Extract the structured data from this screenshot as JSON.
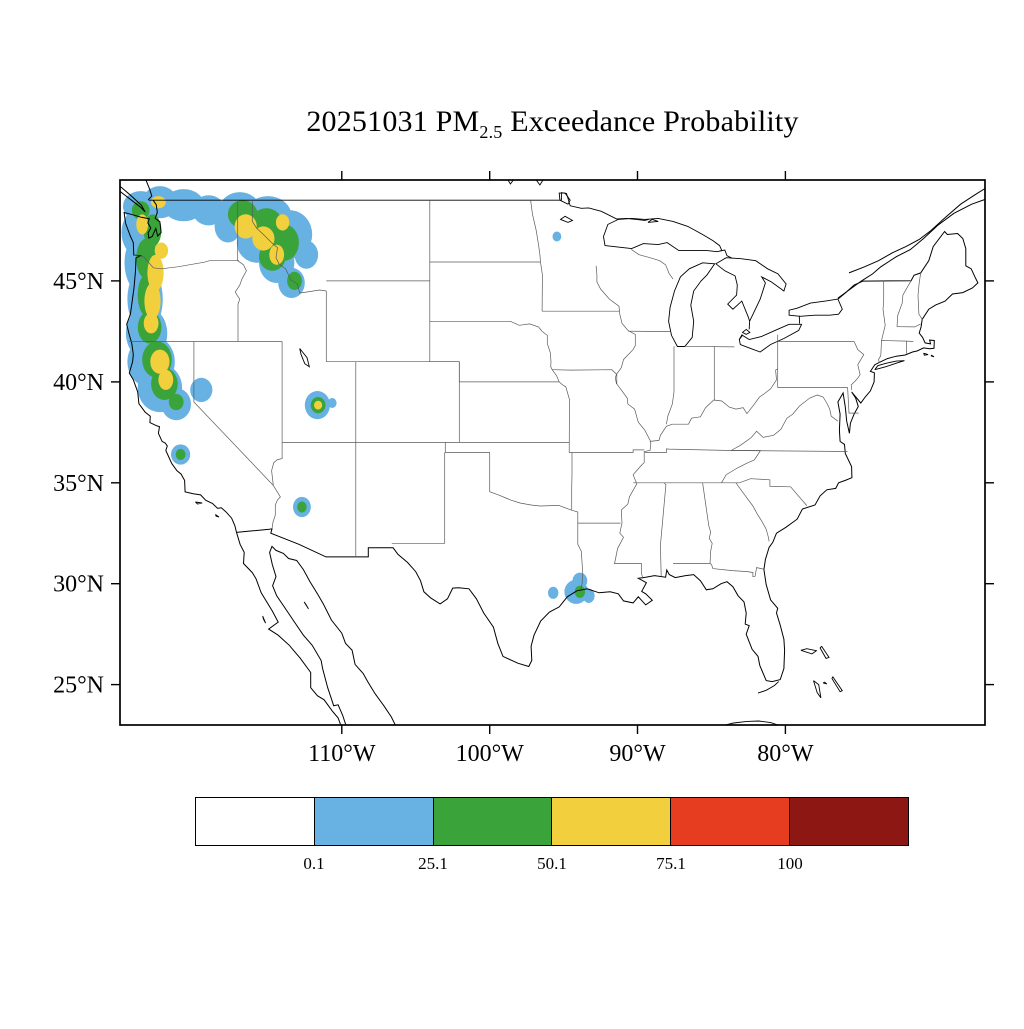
{
  "title": {
    "prefix": "20251031 PM",
    "subscript": "2.5",
    "suffix": " Exceedance Probability"
  },
  "chart_data": {
    "type": "heatmap",
    "subtype": "filled-contour probability map over continental United States",
    "title": "20251031 PM2.5 Exceedance Probability",
    "date": "20251031",
    "quantity": "PM2.5 exceedance probability (%)",
    "map_extent": {
      "lon_min": -125.0,
      "lon_max": -66.5,
      "lat_min": 23.0,
      "lat_max": 50.0
    },
    "grid": "off",
    "x_axis": {
      "ticks": [
        {
          "value": -110,
          "label": "110°W"
        },
        {
          "value": -100,
          "label": "100°W"
        },
        {
          "value": -90,
          "label": "90°W"
        },
        {
          "value": -80,
          "label": "80°W"
        }
      ]
    },
    "y_axis": {
      "ticks": [
        {
          "value": 45,
          "label": "45°N"
        },
        {
          "value": 40,
          "label": "40°N"
        },
        {
          "value": 35,
          "label": "35°N"
        },
        {
          "value": 30,
          "label": "30°N"
        },
        {
          "value": 25,
          "label": "25°N"
        }
      ]
    },
    "colorbar": {
      "orientation": "horizontal",
      "bin_edges": [
        0,
        0.1,
        25.1,
        50.1,
        75.1,
        100
      ],
      "tick_labels": [
        "0.1",
        "25.1",
        "50.1",
        "75.1",
        "100"
      ],
      "colors": [
        "#ffffff",
        "#67b1e3",
        "#3aa33a",
        "#f2cf3d",
        "#e63d20",
        "#8d1713"
      ]
    },
    "probability_regions": {
      "columns": [
        "lon",
        "lat",
        "rx_deg",
        "ry_deg",
        "bin"
      ],
      "bin_meaning": {
        "1": "0.1-25.1 %",
        "2": "25.1-50.1 %",
        "3": "50.1-75.1 %"
      },
      "points": [
        [
          -123.6,
          48.7,
          1.2,
          0.75,
          1
        ],
        [
          -122.3,
          48.9,
          1.2,
          0.8,
          1
        ],
        [
          -120.7,
          48.75,
          1.4,
          0.8,
          1
        ],
        [
          -119.0,
          48.5,
          1.1,
          0.75,
          1
        ],
        [
          -123.9,
          47.4,
          1.0,
          1.1,
          1
        ],
        [
          -123.5,
          45.9,
          1.2,
          1.5,
          1
        ],
        [
          -123.3,
          44.1,
          1.2,
          1.6,
          1
        ],
        [
          -123.2,
          42.4,
          1.4,
          1.3,
          1
        ],
        [
          -122.9,
          41.0,
          1.6,
          1.3,
          1
        ],
        [
          -122.3,
          39.7,
          1.5,
          1.2,
          1
        ],
        [
          -121.2,
          38.9,
          1.0,
          0.8,
          1
        ],
        [
          -119.5,
          39.6,
          0.75,
          0.6,
          1
        ],
        [
          -116.9,
          48.5,
          1.4,
          0.9,
          1
        ],
        [
          -115.0,
          48.2,
          1.6,
          1.0,
          1
        ],
        [
          -113.5,
          47.3,
          1.5,
          1.2,
          1
        ],
        [
          -115.7,
          46.9,
          1.4,
          1.0,
          1
        ],
        [
          -114.4,
          45.9,
          1.2,
          1.0,
          1
        ],
        [
          -113.4,
          44.9,
          0.9,
          0.75,
          1
        ],
        [
          -112.4,
          46.3,
          0.8,
          0.7,
          1
        ],
        [
          -117.7,
          47.7,
          0.9,
          0.8,
          1
        ],
        [
          -111.65,
          38.85,
          0.85,
          0.7,
          1
        ],
        [
          -110.65,
          38.95,
          0.3,
          0.25,
          1
        ],
        [
          -112.7,
          33.8,
          0.6,
          0.5,
          1
        ],
        [
          -120.9,
          36.4,
          0.65,
          0.5,
          1
        ],
        [
          -95.45,
          47.2,
          0.3,
          0.25,
          1
        ],
        [
          -95.7,
          29.55,
          0.35,
          0.3,
          1
        ],
        [
          -94.15,
          29.6,
          0.8,
          0.6,
          1
        ],
        [
          -93.9,
          30.15,
          0.5,
          0.4,
          1
        ],
        [
          -93.3,
          29.4,
          0.4,
          0.35,
          1
        ],
        [
          -123.6,
          48.5,
          0.6,
          0.45,
          2
        ],
        [
          -122.8,
          47.5,
          0.6,
          0.8,
          2
        ],
        [
          -123.2,
          46.1,
          0.7,
          1.0,
          2
        ],
        [
          -123.1,
          44.3,
          0.7,
          1.1,
          2
        ],
        [
          -123.0,
          42.7,
          0.8,
          0.8,
          2
        ],
        [
          -122.5,
          41.1,
          1.0,
          0.9,
          2
        ],
        [
          -122.0,
          39.9,
          0.9,
          0.8,
          2
        ],
        [
          -121.2,
          39.0,
          0.5,
          0.4,
          2
        ],
        [
          -116.7,
          48.3,
          1.0,
          0.7,
          2
        ],
        [
          -115.1,
          47.8,
          1.1,
          0.8,
          2
        ],
        [
          -113.9,
          46.9,
          1.0,
          0.9,
          2
        ],
        [
          -114.7,
          46.2,
          0.9,
          0.7,
          2
        ],
        [
          -113.2,
          45.0,
          0.5,
          0.45,
          2
        ],
        [
          -111.6,
          38.85,
          0.5,
          0.4,
          2
        ],
        [
          -112.7,
          33.8,
          0.32,
          0.27,
          2
        ],
        [
          -120.9,
          36.4,
          0.33,
          0.27,
          2
        ],
        [
          -93.9,
          29.6,
          0.35,
          0.3,
          2
        ],
        [
          -122.4,
          48.9,
          0.5,
          0.3,
          3
        ],
        [
          -123.5,
          47.8,
          0.4,
          0.5,
          3
        ],
        [
          -122.2,
          46.5,
          0.45,
          0.4,
          3
        ],
        [
          -122.6,
          45.4,
          0.55,
          0.9,
          3
        ],
        [
          -122.8,
          44.0,
          0.55,
          0.9,
          3
        ],
        [
          -122.9,
          42.9,
          0.5,
          0.5,
          3
        ],
        [
          -122.3,
          41.0,
          0.65,
          0.6,
          3
        ],
        [
          -121.9,
          40.1,
          0.5,
          0.5,
          3
        ],
        [
          -116.5,
          47.7,
          0.75,
          0.6,
          3
        ],
        [
          -115.3,
          47.1,
          0.75,
          0.6,
          3
        ],
        [
          -114.4,
          46.3,
          0.5,
          0.5,
          3
        ],
        [
          -114.0,
          47.9,
          0.45,
          0.4,
          3
        ],
        [
          -111.6,
          38.85,
          0.28,
          0.22,
          3
        ]
      ]
    }
  }
}
